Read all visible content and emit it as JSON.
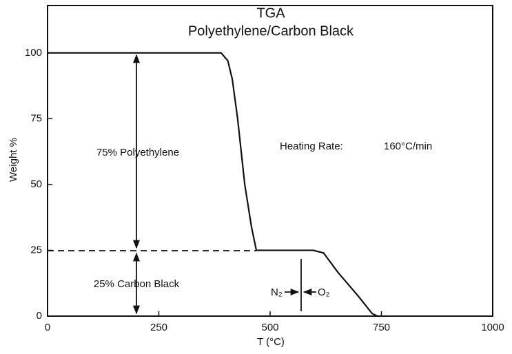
{
  "chart_data": {
    "type": "line",
    "title": "TGA",
    "subtitle": "Polyethylene/Carbon Black",
    "x_label": "T (°C)",
    "y_label": "Weight %",
    "series": [
      {
        "name": "Weight",
        "color": "#111111",
        "x": [
          0,
          390,
          405,
          415,
          427,
          443,
          458,
          469,
          480,
          597,
          620,
          652,
          698,
          729,
          741,
          750
        ],
        "values": [
          100,
          100,
          97,
          90,
          75,
          50,
          34,
          25,
          25,
          25,
          24,
          16.7,
          7.6,
          1,
          0,
          0
        ]
      }
    ],
    "xlim": [
      0,
      1000
    ],
    "xticks": [
      0,
      250,
      500,
      750,
      1000
    ],
    "ylim": [
      0,
      118
    ],
    "yticks": [
      0,
      25,
      50,
      75,
      100
    ],
    "grid": false,
    "annotations": {
      "polyethylene": "75% Polyethylene",
      "carbon_black": "25% Carbon Black",
      "heating_rate_label": "Heating Rate:",
      "heating_rate_value": "160°C/min",
      "n2": "N₂",
      "o2": "O₂"
    }
  }
}
